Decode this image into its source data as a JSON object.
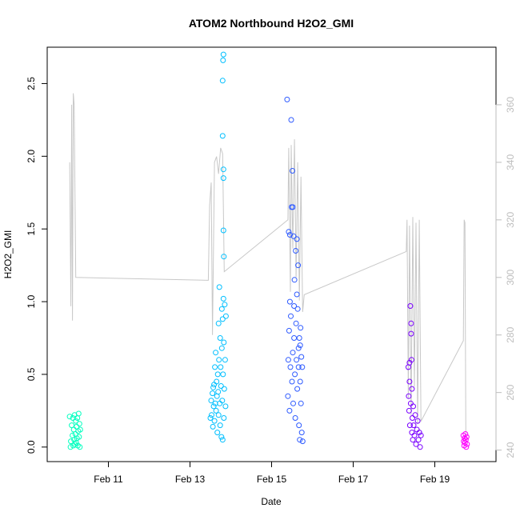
{
  "chart_data": {
    "type": "scatter",
    "title": "ATOM2 Northbound H2O2_GMI",
    "xlabel": "Date",
    "ylabel": "H2O2_GMI",
    "x_ticks": [
      {
        "day": 11,
        "label": "Feb 11"
      },
      {
        "day": 13,
        "label": "Feb 13"
      },
      {
        "day": 15,
        "label": "Feb 15"
      },
      {
        "day": 17,
        "label": "Feb 17"
      },
      {
        "day": 19,
        "label": "Feb 19"
      }
    ],
    "xlim": [
      9.5,
      20.5
    ],
    "ylim": [
      -0.1,
      2.75
    ],
    "y_ticks": [
      "0.0",
      "0.5",
      "1.0",
      "1.5",
      "2.0",
      "2.5"
    ],
    "y2lim": [
      236,
      380
    ],
    "y2_ticks": [
      "240",
      "260",
      "280",
      "300",
      "320",
      "340",
      "360"
    ],
    "line_color": "#c8c8c8",
    "point_colors": [
      "#00ffbf",
      "#00bfff",
      "#2f5bff",
      "#7a00ff",
      "#ff00ff"
    ],
    "series": [
      {
        "color": "#00ffbf",
        "points": [
          [
            10.05,
            0.21
          ],
          [
            10.07,
            0.0
          ],
          [
            10.08,
            0.04
          ],
          [
            10.1,
            0.15
          ],
          [
            10.12,
            0.08
          ],
          [
            10.13,
            0.2
          ],
          [
            10.14,
            0.01
          ],
          [
            10.15,
            0.12
          ],
          [
            10.16,
            0.05
          ],
          [
            10.17,
            0.22
          ],
          [
            10.18,
            0.02
          ],
          [
            10.19,
            0.09
          ],
          [
            10.2,
            0.18
          ],
          [
            10.21,
            0.03
          ],
          [
            10.22,
            0.14
          ],
          [
            10.23,
            0.06
          ],
          [
            10.24,
            0.2
          ],
          [
            10.25,
            0.01
          ],
          [
            10.26,
            0.11
          ],
          [
            10.27,
            0.23
          ],
          [
            10.28,
            0.07
          ],
          [
            10.29,
            0.16
          ],
          [
            10.3,
            0.0
          ],
          [
            10.31,
            0.12
          ]
        ]
      },
      {
        "color": "#00bfff",
        "points": [
          [
            13.5,
            0.2
          ],
          [
            13.52,
            0.32
          ],
          [
            13.53,
            0.22
          ],
          [
            13.55,
            0.37
          ],
          [
            13.56,
            0.14
          ],
          [
            13.57,
            0.41
          ],
          [
            13.58,
            0.28
          ],
          [
            13.59,
            0.43
          ],
          [
            13.6,
            0.18
          ],
          [
            13.61,
            0.55
          ],
          [
            13.62,
            0.3
          ],
          [
            13.63,
            0.65
          ],
          [
            13.64,
            0.25
          ],
          [
            13.65,
            0.45
          ],
          [
            13.66,
            0.35
          ],
          [
            13.67,
            0.1
          ],
          [
            13.68,
            0.5
          ],
          [
            13.69,
            0.38
          ],
          [
            13.7,
            0.22
          ],
          [
            13.7,
            0.85
          ],
          [
            13.71,
            0.6
          ],
          [
            13.72,
            1.1
          ],
          [
            13.73,
            0.3
          ],
          [
            13.74,
            0.75
          ],
          [
            13.74,
            0.15
          ],
          [
            13.75,
            0.55
          ],
          [
            13.76,
            0.42
          ],
          [
            13.77,
            0.07
          ],
          [
            13.78,
            0.68
          ],
          [
            13.78,
            0.95
          ],
          [
            13.79,
            0.32
          ],
          [
            13.8,
            0.88
          ],
          [
            13.8,
            0.05
          ],
          [
            13.81,
            0.5
          ],
          [
            13.82,
            1.02
          ],
          [
            13.83,
            0.2
          ],
          [
            13.83,
            0.72
          ],
          [
            13.84,
            0.4
          ],
          [
            13.85,
            0.98
          ],
          [
            13.86,
            0.6
          ],
          [
            13.87,
            0.28
          ],
          [
            13.88,
            0.9
          ],
          [
            13.8,
            2.14
          ],
          [
            13.82,
            1.91
          ],
          [
            13.82,
            1.85
          ],
          [
            13.82,
            1.49
          ],
          [
            13.83,
            1.31
          ],
          [
            13.8,
            2.52
          ],
          [
            13.81,
            2.66
          ],
          [
            13.82,
            2.7
          ]
        ]
      },
      {
        "color": "#2f5bff",
        "points": [
          [
            15.38,
            2.39
          ],
          [
            15.4,
            0.35
          ],
          [
            15.41,
            0.6
          ],
          [
            15.42,
            1.48
          ],
          [
            15.43,
            0.8
          ],
          [
            15.44,
            0.25
          ],
          [
            15.45,
            1.0
          ],
          [
            15.46,
            0.55
          ],
          [
            15.47,
            0.9
          ],
          [
            15.48,
            2.25
          ],
          [
            15.49,
            1.65
          ],
          [
            15.5,
            0.45
          ],
          [
            15.51,
            1.9
          ],
          [
            15.52,
            0.65
          ],
          [
            15.53,
            0.3
          ],
          [
            15.54,
            1.45
          ],
          [
            15.55,
            0.75
          ],
          [
            15.56,
            1.15
          ],
          [
            15.57,
            0.5
          ],
          [
            15.58,
            0.2
          ],
          [
            15.59,
            1.35
          ],
          [
            15.6,
            0.85
          ],
          [
            15.61,
            0.6
          ],
          [
            15.62,
            1.05
          ],
          [
            15.63,
            0.4
          ],
          [
            15.64,
            0.95
          ],
          [
            15.65,
            1.25
          ],
          [
            15.66,
            0.55
          ],
          [
            15.67,
            0.15
          ],
          [
            15.68,
            0.75
          ],
          [
            15.69,
            0.05
          ],
          [
            15.7,
            0.45
          ],
          [
            15.71,
            0.82
          ],
          [
            15.72,
            0.3
          ],
          [
            15.73,
            0.62
          ],
          [
            15.74,
            0.1
          ],
          [
            15.75,
            0.55
          ],
          [
            15.76,
            0.04
          ],
          [
            15.45,
            1.46
          ],
          [
            15.52,
            1.65
          ],
          [
            15.55,
            0.97
          ],
          [
            15.62,
            1.43
          ],
          [
            15.66,
            0.68
          ],
          [
            15.7,
            0.7
          ]
        ]
      },
      {
        "color": "#7a00ff",
        "points": [
          [
            18.35,
            0.55
          ],
          [
            18.36,
            0.35
          ],
          [
            18.37,
            0.25
          ],
          [
            18.38,
            0.45
          ],
          [
            18.39,
            0.15
          ],
          [
            18.4,
            0.97
          ],
          [
            18.41,
            0.3
          ],
          [
            18.42,
            0.78
          ],
          [
            18.43,
            0.6
          ],
          [
            18.44,
            0.1
          ],
          [
            18.45,
            0.2
          ],
          [
            18.46,
            0.05
          ],
          [
            18.47,
            0.28
          ],
          [
            18.48,
            0.15
          ],
          [
            18.5,
            0.08
          ],
          [
            18.52,
            0.22
          ],
          [
            18.54,
            0.02
          ],
          [
            18.56,
            0.12
          ],
          [
            18.58,
            0.18
          ],
          [
            18.6,
            0.05
          ],
          [
            18.62,
            0.1
          ],
          [
            18.64,
            0.0
          ],
          [
            18.66,
            0.08
          ],
          [
            18.42,
            0.85
          ],
          [
            18.38,
            0.58
          ],
          [
            18.44,
            0.4
          ]
        ]
      },
      {
        "color": "#ff00ff",
        "points": [
          [
            19.7,
            0.08
          ],
          [
            19.71,
            0.04
          ],
          [
            19.72,
            0.01
          ],
          [
            19.73,
            0.06
          ],
          [
            19.74,
            0.03
          ],
          [
            19.75,
            0.09
          ],
          [
            19.76,
            0.05
          ],
          [
            19.77,
            0.0
          ],
          [
            19.78,
            0.07
          ],
          [
            19.79,
            0.02
          ]
        ]
      }
    ],
    "y2_line": [
      [
        10.05,
        340
      ],
      [
        10.08,
        290
      ],
      [
        10.1,
        360
      ],
      [
        10.12,
        285
      ],
      [
        10.14,
        364
      ],
      [
        10.16,
        360
      ],
      [
        10.2,
        300
      ],
      [
        13.45,
        299
      ],
      [
        13.48,
        325
      ],
      [
        13.52,
        333
      ],
      [
        13.55,
        280
      ],
      [
        13.6,
        340
      ],
      [
        13.65,
        342
      ],
      [
        13.7,
        336
      ],
      [
        13.75,
        345
      ],
      [
        13.8,
        343
      ],
      [
        13.84,
        302
      ],
      [
        15.4,
        320
      ],
      [
        15.42,
        345
      ],
      [
        15.46,
        295
      ],
      [
        15.48,
        346
      ],
      [
        15.52,
        310
      ],
      [
        15.56,
        348
      ],
      [
        15.6,
        300
      ],
      [
        15.64,
        340
      ],
      [
        15.68,
        292
      ],
      [
        15.72,
        335
      ],
      [
        15.76,
        288
      ],
      [
        15.8,
        294
      ],
      [
        18.3,
        309
      ],
      [
        18.32,
        320
      ],
      [
        18.35,
        258
      ],
      [
        18.38,
        318
      ],
      [
        18.42,
        252
      ],
      [
        18.46,
        321
      ],
      [
        18.5,
        262
      ],
      [
        18.54,
        319
      ],
      [
        18.58,
        249
      ],
      [
        18.62,
        320
      ],
      [
        18.66,
        250
      ],
      [
        19.7,
        278
      ],
      [
        19.72,
        320
      ],
      [
        19.74,
        319
      ],
      [
        19.76,
        245
      ]
    ]
  }
}
